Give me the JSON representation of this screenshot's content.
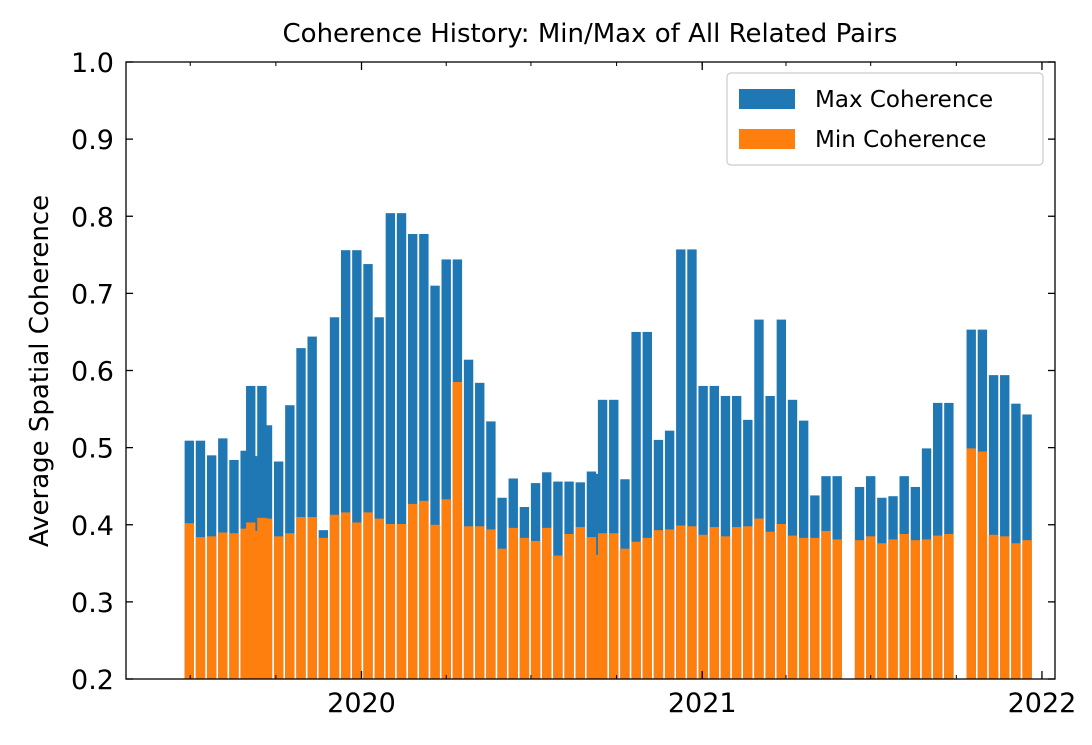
{
  "chart_data": {
    "type": "bar",
    "title": "Coherence History: Min/Max of All Related Pairs",
    "xlabel": "",
    "ylabel": "Average Spatial Coherence",
    "ylim": [
      0.2,
      1.0
    ],
    "xlim": [
      "2019-04-23",
      "2022-01-15"
    ],
    "yticks": [
      "0.2",
      "0.3",
      "0.4",
      "0.5",
      "0.6",
      "0.7",
      "0.8",
      "0.9",
      "1.0"
    ],
    "xticks": [
      {
        "label": "2020",
        "date": "2020-01-01"
      },
      {
        "label": "2021",
        "date": "2021-01-01"
      },
      {
        "label": "2022",
        "date": "2022-01-01"
      }
    ],
    "grid": false,
    "legend_position": "top-right",
    "colors": {
      "Max Coherence": "#1f77b4",
      "Min Coherence": "#ff7f0e"
    },
    "series": [
      {
        "name": "Max Coherence",
        "points": [
          [
            "2019-06-30",
            0.509
          ],
          [
            "2019-07-12",
            0.509
          ],
          [
            "2019-07-24",
            0.49
          ],
          [
            "2019-08-05",
            0.512
          ],
          [
            "2019-08-17",
            0.484
          ],
          [
            "2019-08-29",
            0.496
          ],
          [
            "2019-09-04",
            0.58
          ],
          [
            "2019-09-10",
            0.489
          ],
          [
            "2019-09-16",
            0.58
          ],
          [
            "2019-09-22",
            0.529
          ],
          [
            "2019-10-04",
            0.482
          ],
          [
            "2019-10-16",
            0.555
          ],
          [
            "2019-10-28",
            0.629
          ],
          [
            "2019-11-09",
            0.644
          ],
          [
            "2019-11-21",
            0.393
          ],
          [
            "2019-12-03",
            0.669
          ],
          [
            "2019-12-15",
            0.756
          ],
          [
            "2019-12-27",
            0.756
          ],
          [
            "2020-01-08",
            0.738
          ],
          [
            "2020-01-20",
            0.669
          ],
          [
            "2020-02-01",
            0.804
          ],
          [
            "2020-02-13",
            0.804
          ],
          [
            "2020-02-25",
            0.777
          ],
          [
            "2020-03-08",
            0.777
          ],
          [
            "2020-03-20",
            0.71
          ],
          [
            "2020-04-01",
            0.744
          ],
          [
            "2020-04-13",
            0.744
          ],
          [
            "2020-04-25",
            0.614
          ],
          [
            "2020-05-07",
            0.584
          ],
          [
            "2020-05-19",
            0.534
          ],
          [
            "2020-05-31",
            0.435
          ],
          [
            "2020-06-12",
            0.46
          ],
          [
            "2020-06-24",
            0.423
          ],
          [
            "2020-07-06",
            0.454
          ],
          [
            "2020-07-18",
            0.468
          ],
          [
            "2020-07-30",
            0.456
          ],
          [
            "2020-08-11",
            0.456
          ],
          [
            "2020-08-23",
            0.455
          ],
          [
            "2020-09-04",
            0.469
          ],
          [
            "2020-09-10",
            0.466
          ],
          [
            "2020-09-16",
            0.562
          ],
          [
            "2020-09-28",
            0.562
          ],
          [
            "2020-10-10",
            0.459
          ],
          [
            "2020-10-22",
            0.65
          ],
          [
            "2020-11-03",
            0.65
          ],
          [
            "2020-11-15",
            0.51
          ],
          [
            "2020-11-27",
            0.522
          ],
          [
            "2020-12-09",
            0.757
          ],
          [
            "2020-12-21",
            0.757
          ],
          [
            "2021-01-02",
            0.58
          ],
          [
            "2021-01-14",
            0.58
          ],
          [
            "2021-01-26",
            0.567
          ],
          [
            "2021-02-07",
            0.567
          ],
          [
            "2021-02-19",
            0.536
          ],
          [
            "2021-03-03",
            0.666
          ],
          [
            "2021-03-15",
            0.567
          ],
          [
            "2021-03-27",
            0.666
          ],
          [
            "2021-04-08",
            0.562
          ],
          [
            "2021-04-20",
            0.535
          ],
          [
            "2021-05-02",
            0.438
          ],
          [
            "2021-05-14",
            0.463
          ],
          [
            "2021-05-26",
            0.463
          ],
          [
            "2021-06-19",
            0.449
          ],
          [
            "2021-07-01",
            0.463
          ],
          [
            "2021-07-13",
            0.435
          ],
          [
            "2021-07-25",
            0.437
          ],
          [
            "2021-08-06",
            0.463
          ],
          [
            "2021-08-18",
            0.449
          ],
          [
            "2021-08-30",
            0.499
          ],
          [
            "2021-09-11",
            0.558
          ],
          [
            "2021-09-23",
            0.558
          ],
          [
            "2021-10-17",
            0.653
          ],
          [
            "2021-10-29",
            0.653
          ],
          [
            "2021-11-10",
            0.594
          ],
          [
            "2021-11-22",
            0.594
          ],
          [
            "2021-12-04",
            0.557
          ],
          [
            "2021-12-16",
            0.543
          ]
        ]
      },
      {
        "name": "Min Coherence",
        "points": [
          [
            "2019-06-30",
            0.402
          ],
          [
            "2019-07-12",
            0.384
          ],
          [
            "2019-07-24",
            0.385
          ],
          [
            "2019-08-05",
            0.39
          ],
          [
            "2019-08-17",
            0.389
          ],
          [
            "2019-08-29",
            0.395
          ],
          [
            "2019-09-04",
            0.403
          ],
          [
            "2019-09-10",
            0.392
          ],
          [
            "2019-09-16",
            0.409
          ],
          [
            "2019-09-22",
            0.408
          ],
          [
            "2019-10-04",
            0.385
          ],
          [
            "2019-10-16",
            0.389
          ],
          [
            "2019-10-28",
            0.41
          ],
          [
            "2019-11-09",
            0.41
          ],
          [
            "2019-11-21",
            0.383
          ],
          [
            "2019-12-03",
            0.413
          ],
          [
            "2019-12-15",
            0.416
          ],
          [
            "2019-12-27",
            0.403
          ],
          [
            "2020-01-08",
            0.416
          ],
          [
            "2020-01-20",
            0.408
          ],
          [
            "2020-02-01",
            0.401
          ],
          [
            "2020-02-13",
            0.401
          ],
          [
            "2020-02-25",
            0.427
          ],
          [
            "2020-03-08",
            0.431
          ],
          [
            "2020-03-20",
            0.4
          ],
          [
            "2020-04-01",
            0.433
          ],
          [
            "2020-04-13",
            0.585
          ],
          [
            "2020-04-25",
            0.398
          ],
          [
            "2020-05-07",
            0.398
          ],
          [
            "2020-05-19",
            0.394
          ],
          [
            "2020-05-31",
            0.369
          ],
          [
            "2020-06-12",
            0.396
          ],
          [
            "2020-06-24",
            0.383
          ],
          [
            "2020-07-06",
            0.379
          ],
          [
            "2020-07-18",
            0.396
          ],
          [
            "2020-07-30",
            0.36
          ],
          [
            "2020-08-11",
            0.388
          ],
          [
            "2020-08-23",
            0.397
          ],
          [
            "2020-09-04",
            0.384
          ],
          [
            "2020-09-10",
            0.361
          ],
          [
            "2020-09-16",
            0.389
          ],
          [
            "2020-09-28",
            0.389
          ],
          [
            "2020-10-10",
            0.369
          ],
          [
            "2020-10-22",
            0.378
          ],
          [
            "2020-11-03",
            0.383
          ],
          [
            "2020-11-15",
            0.393
          ],
          [
            "2020-11-27",
            0.394
          ],
          [
            "2020-12-09",
            0.399
          ],
          [
            "2020-12-21",
            0.398
          ],
          [
            "2021-01-02",
            0.387
          ],
          [
            "2021-01-14",
            0.397
          ],
          [
            "2021-01-26",
            0.385
          ],
          [
            "2021-02-07",
            0.397
          ],
          [
            "2021-02-19",
            0.398
          ],
          [
            "2021-03-03",
            0.408
          ],
          [
            "2021-03-15",
            0.391
          ],
          [
            "2021-03-27",
            0.401
          ],
          [
            "2021-04-08",
            0.386
          ],
          [
            "2021-04-20",
            0.383
          ],
          [
            "2021-05-02",
            0.383
          ],
          [
            "2021-05-14",
            0.392
          ],
          [
            "2021-05-26",
            0.381
          ],
          [
            "2021-06-19",
            0.38
          ],
          [
            "2021-07-01",
            0.385
          ],
          [
            "2021-07-13",
            0.376
          ],
          [
            "2021-07-25",
            0.381
          ],
          [
            "2021-08-06",
            0.388
          ],
          [
            "2021-08-18",
            0.38
          ],
          [
            "2021-08-30",
            0.381
          ],
          [
            "2021-09-11",
            0.386
          ],
          [
            "2021-09-23",
            0.388
          ],
          [
            "2021-10-17",
            0.499
          ],
          [
            "2021-10-29",
            0.495
          ],
          [
            "2021-11-10",
            0.387
          ],
          [
            "2021-11-22",
            0.385
          ],
          [
            "2021-12-04",
            0.376
          ],
          [
            "2021-12-16",
            0.38
          ]
        ]
      }
    ]
  }
}
